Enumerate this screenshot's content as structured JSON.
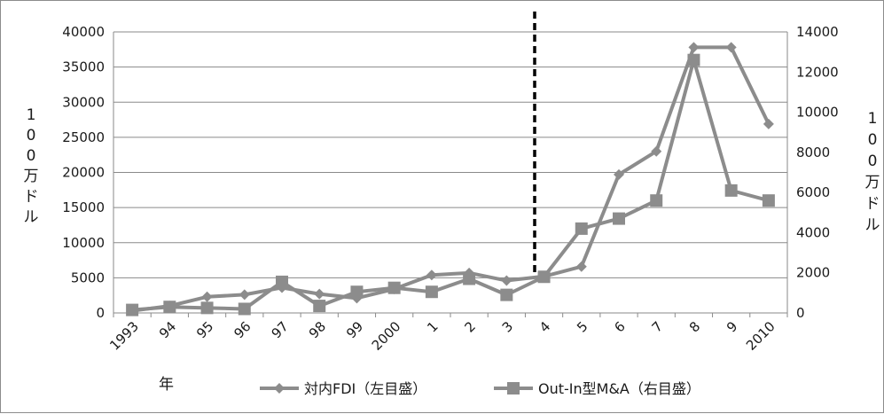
{
  "chart_data": {
    "type": "line",
    "categories": [
      "1993",
      "94",
      "95",
      "96",
      "97",
      "98",
      "99",
      "2000",
      "1",
      "2",
      "3",
      "4",
      "5",
      "6",
      "7",
      "8",
      "9",
      "2010"
    ],
    "series": [
      {
        "name": "対内FDI（左目盛）",
        "axis": "left",
        "color": "#8c8c8c",
        "marker": "diamond",
        "values": [
          300,
          1000,
          2300,
          2600,
          3600,
          2700,
          2100,
          3400,
          5400,
          5700,
          4600,
          5200,
          6600,
          19700,
          23000,
          37800,
          37800,
          26900
        ]
      },
      {
        "name": "Out-In型M&A（右目盛）",
        "axis": "right",
        "color": "#8c8c8c",
        "marker": "square",
        "values": [
          150,
          300,
          250,
          200,
          1550,
          350,
          1050,
          1250,
          1050,
          1700,
          900,
          1800,
          4200,
          4700,
          5600,
          12600,
          6100,
          5600
        ]
      }
    ],
    "y_left": {
      "min": 0,
      "max": 40000,
      "ticks": [
        "0",
        "5000",
        "10000",
        "15000",
        "20000",
        "25000",
        "30000",
        "35000",
        "40000"
      ]
    },
    "y_right": {
      "min": 0,
      "max": 14000,
      "ticks": [
        "0",
        "2000",
        "4000",
        "6000",
        "8000",
        "10000",
        "12000",
        "14000"
      ]
    },
    "ylabel_left": [
      "1",
      "0",
      "0",
      "万",
      "ド",
      "ル"
    ],
    "ylabel_right": [
      "1",
      "0",
      "0",
      "万",
      "ド",
      "ル"
    ],
    "xlabel": "年",
    "marker_line_after_category": "4",
    "grid": true,
    "legend_position": "bottom"
  }
}
